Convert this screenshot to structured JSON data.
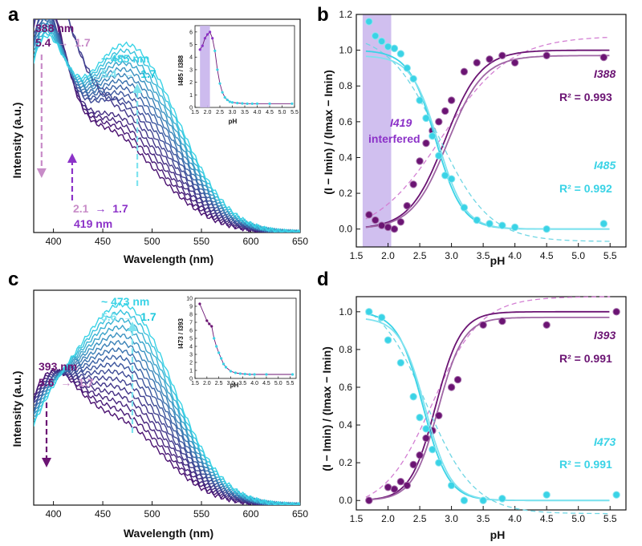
{
  "colors": {
    "purple": "#6b1473",
    "cyan": "#3ad3e6",
    "violet": "#8c32c8",
    "lightpurple": "#c88cc8",
    "shade": "#c8b4ec",
    "darkcyan": "#1e7896"
  },
  "panels": {
    "a": {
      "label": "a",
      "xlabel": "Wavelength (nm)",
      "ylabel": "Intensity (a.u.)",
      "ann_388_title": "388 nm",
      "ann_388_from": "5.4",
      "ann_388_arrow": "→",
      "ann_388_to": "1.7",
      "ann_485_title": "~ 485 nm",
      "ann_485_from": "5.4",
      "ann_485_arrow": "→",
      "ann_485_to": "1.7",
      "ann_419_from": "2.1",
      "ann_419_arrow": "→",
      "ann_419_to": "1.7",
      "ann_419_title": "419 nm",
      "inset_ylabel": "I485 / I388",
      "inset_xlabel": "pH"
    },
    "b": {
      "label": "b",
      "xlabel": "pH",
      "ylabel": "(I − Imin) / (Imax − Imin)",
      "shade_label_1": "I419",
      "shade_label_2": "interfered",
      "series_purple_label": "I388",
      "series_purple_r2": "R² = 0.993",
      "series_cyan_label": "I485",
      "series_cyan_r2": "R² = 0.992"
    },
    "c": {
      "label": "c",
      "xlabel": "Wavelength (nm)",
      "ylabel": "Intensity (a.u.)",
      "ann_473_title": "~ 473 nm",
      "ann_473_from": "5.6",
      "ann_473_arrow": "→",
      "ann_473_to": "1.7",
      "ann_393_title": "393 nm",
      "ann_393_from": "5.6",
      "ann_393_arrow": "→",
      "ann_393_to": "1.7",
      "inset_ylabel": "I473 / I393",
      "inset_xlabel": "pH"
    },
    "d": {
      "label": "d",
      "xlabel": "pH",
      "ylabel": "(I − Imin) / (Imax − Imin)",
      "series_purple_label": "I393",
      "series_purple_r2": "R² = 0.991",
      "series_cyan_label": "I473",
      "series_cyan_r2": "R² = 0.991"
    }
  },
  "chart_data": [
    {
      "panel": "a",
      "type": "line",
      "xlabel": "Wavelength (nm)",
      "ylabel": "Intensity (a.u.)",
      "xlim": [
        380,
        650
      ],
      "xticks": [
        400,
        450,
        500,
        550,
        600,
        650
      ],
      "ylim": [
        0,
        1
      ],
      "grid": false,
      "description_of_series": "emission spectra at pH from 5.4 to 1.7",
      "series_params": {
        "count": 16,
        "peak_short_nm": 388,
        "peak_long_nm": 485,
        "peak_mid_nm": 419,
        "short_amp_range": [
          0.7,
          0.94
        ],
        "long_amp_range": [
          0.21,
          0.73
        ]
      },
      "inset": {
        "type": "scatter",
        "xlabel": "pH",
        "ylabel": "I485 / I388",
        "xlim": [
          1.5,
          5.5
        ],
        "ylim": [
          0,
          6.5
        ],
        "xticks": [
          1.5,
          2.0,
          2.5,
          3.0,
          3.5,
          4.0,
          4.5,
          5.0,
          5.5
        ],
        "yticks": [
          0,
          1,
          2,
          3,
          4,
          5,
          6
        ],
        "shaded_x": [
          1.7,
          2.1
        ],
        "x": [
          1.7,
          1.8,
          1.9,
          2.0,
          2.1,
          2.2,
          2.3,
          2.4,
          2.5,
          2.6,
          2.7,
          2.8,
          2.9,
          3.0,
          3.2,
          3.4,
          3.6,
          3.8,
          4.0,
          4.5,
          5.4
        ],
        "y": [
          4.6,
          4.9,
          5.5,
          5.8,
          6.0,
          5.5,
          4.5,
          3.0,
          1.9,
          1.2,
          0.8,
          0.6,
          0.45,
          0.4,
          0.35,
          0.32,
          0.3,
          0.3,
          0.3,
          0.3,
          0.3
        ]
      }
    },
    {
      "panel": "b",
      "type": "scatter",
      "xlabel": "pH",
      "ylabel": "(I − Imin) / (Imax − Imin)",
      "xlim": [
        1.5,
        5.75
      ],
      "ylim": [
        -0.1,
        1.2
      ],
      "xticks": [
        1.5,
        2.0,
        2.5,
        3.0,
        3.5,
        4.0,
        4.5,
        5.0,
        5.5
      ],
      "yticks": [
        0.0,
        0.2,
        0.4,
        0.6,
        0.8,
        1.0,
        1.2
      ],
      "shaded_x": [
        1.6,
        2.05
      ],
      "series": [
        {
          "name": "I388",
          "x": [
            1.7,
            1.8,
            1.9,
            2.0,
            2.1,
            2.2,
            2.3,
            2.4,
            2.5,
            2.6,
            2.7,
            2.8,
            2.9,
            3.0,
            3.2,
            3.4,
            3.6,
            3.8,
            4.0,
            4.5,
            5.4
          ],
          "y": [
            0.08,
            0.05,
            0.02,
            0.01,
            0.0,
            0.04,
            0.13,
            0.25,
            0.38,
            0.48,
            0.55,
            0.6,
            0.66,
            0.72,
            0.88,
            0.93,
            0.95,
            0.97,
            0.93,
            0.97,
            0.96
          ],
          "fit_center": 2.9,
          "fit_slope": 0.28
        },
        {
          "name": "I485",
          "x": [
            1.7,
            1.8,
            1.9,
            2.0,
            2.1,
            2.2,
            2.3,
            2.4,
            2.5,
            2.6,
            2.7,
            2.8,
            2.9,
            3.0,
            3.2,
            3.4,
            3.6,
            3.8,
            4.0,
            4.5,
            5.4
          ],
          "y": [
            1.16,
            1.08,
            1.05,
            1.02,
            1.01,
            0.98,
            0.9,
            0.84,
            0.72,
            0.62,
            0.52,
            0.41,
            0.3,
            0.28,
            0.12,
            0.05,
            0.03,
            0.02,
            0.01,
            0.0,
            0.03
          ],
          "fit_center": 2.75,
          "fit_slope": 0.21
        }
      ]
    },
    {
      "panel": "c",
      "type": "line",
      "xlabel": "Wavelength (nm)",
      "ylabel": "Intensity (a.u.)",
      "xlim": [
        380,
        650
      ],
      "xticks": [
        400,
        450,
        500,
        550,
        600,
        650
      ],
      "ylim": [
        0,
        1
      ],
      "grid": false,
      "description_of_series": "emission spectra at pH from 5.6 to 1.7",
      "series_params": {
        "count": 16,
        "peak_short_nm": 393,
        "peak_long_nm": 473,
        "short_amp_range": [
          0.22,
          0.46
        ],
        "long_amp_range": [
          0.2,
          0.84
        ]
      },
      "inset": {
        "type": "scatter",
        "xlabel": "pH",
        "ylabel": "I473 / I393",
        "xlim": [
          1.5,
          5.75
        ],
        "ylim": [
          0,
          10
        ],
        "xticks": [
          1.5,
          2.0,
          2.5,
          3.0,
          3.5,
          4.0,
          4.5,
          5.0,
          5.5
        ],
        "yticks": [
          0,
          1,
          2,
          3,
          4,
          5,
          6,
          7,
          8,
          9,
          10
        ],
        "x": [
          1.7,
          2.0,
          2.1,
          2.2,
          2.3,
          2.4,
          2.5,
          2.6,
          2.7,
          2.8,
          3.0,
          3.2,
          3.4,
          3.6,
          3.8,
          4.0,
          4.5,
          5.6
        ],
        "y": [
          9.3,
          7.2,
          6.8,
          6.5,
          5.0,
          4.0,
          3.2,
          2.5,
          1.8,
          1.4,
          0.9,
          0.7,
          0.6,
          0.55,
          0.5,
          0.5,
          0.5,
          0.5
        ]
      }
    },
    {
      "panel": "d",
      "type": "scatter",
      "xlabel": "pH",
      "ylabel": "(I − Imin) / (Imax − Imin)",
      "xlim": [
        1.5,
        5.75
      ],
      "ylim": [
        -0.05,
        1.08
      ],
      "xticks": [
        1.5,
        2.0,
        2.5,
        3.0,
        3.5,
        4.0,
        4.5,
        5.0,
        5.5
      ],
      "yticks": [
        0.0,
        0.2,
        0.4,
        0.6,
        0.8,
        1.0
      ],
      "series": [
        {
          "name": "I393",
          "x": [
            1.7,
            2.0,
            2.1,
            2.2,
            2.3,
            2.4,
            2.5,
            2.6,
            2.7,
            2.8,
            3.0,
            3.1,
            3.5,
            3.8,
            4.5,
            5.6
          ],
          "y": [
            0.0,
            0.07,
            0.06,
            0.1,
            0.08,
            0.19,
            0.24,
            0.33,
            0.37,
            0.45,
            0.6,
            0.64,
            0.93,
            0.95,
            0.93,
            1.0
          ],
          "fit_center": 2.75,
          "fit_slope": 0.2
        },
        {
          "name": "I473",
          "x": [
            1.7,
            1.9,
            2.0,
            2.2,
            2.4,
            2.5,
            2.6,
            2.7,
            2.8,
            3.0,
            3.2,
            3.5,
            3.8,
            4.5,
            5.6
          ],
          "y": [
            1.0,
            0.97,
            0.85,
            0.73,
            0.55,
            0.44,
            0.38,
            0.27,
            0.2,
            0.08,
            0.0,
            0.0,
            0.01,
            0.03,
            0.03
          ],
          "fit_center": 2.55,
          "fit_slope": 0.2
        }
      ]
    }
  ]
}
